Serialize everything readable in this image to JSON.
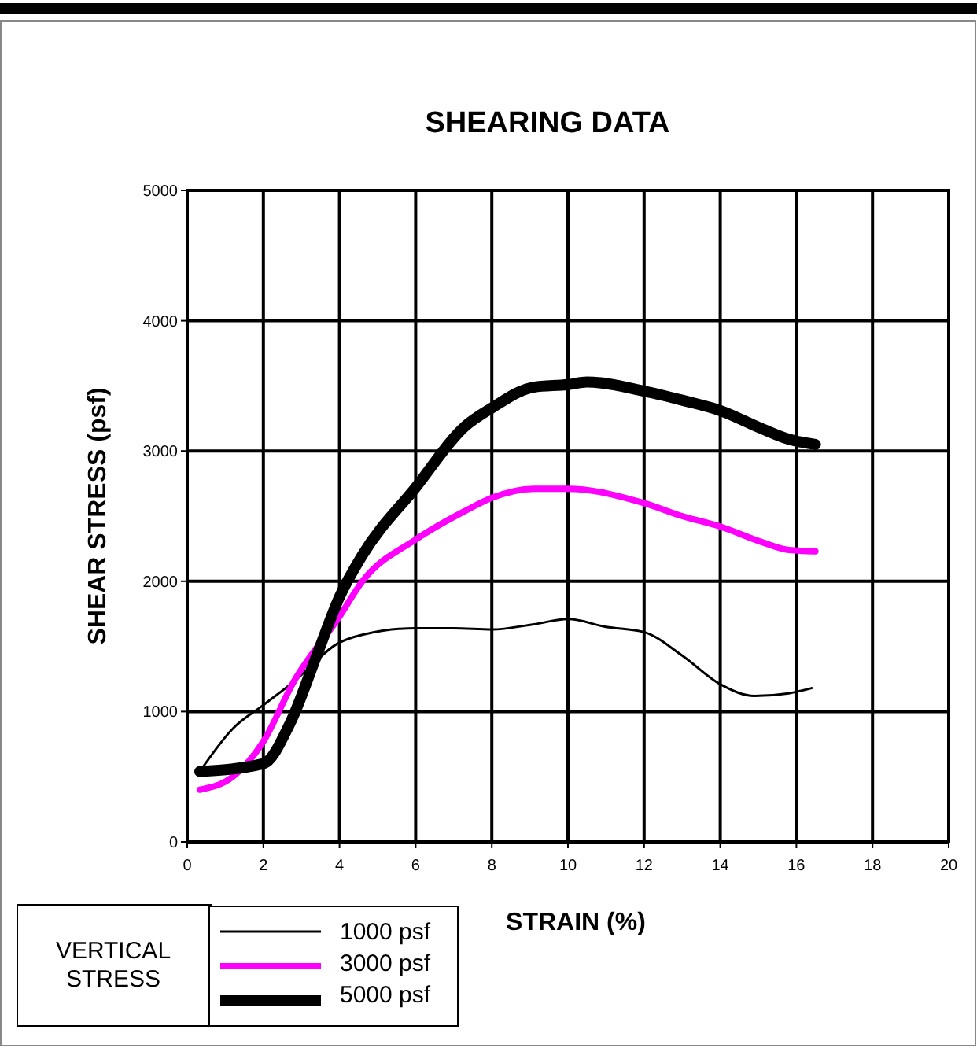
{
  "chart_data": {
    "type": "line",
    "title": "SHEARING DATA",
    "xlabel": "STRAIN (%)",
    "ylabel": "SHEAR STRESS (psf)",
    "legend_title": "VERTICAL STRESS",
    "xlim": [
      0,
      20
    ],
    "xticks": [
      0,
      2,
      4,
      6,
      8,
      10,
      12,
      14,
      16,
      18,
      20
    ],
    "ylim": [
      0,
      5000
    ],
    "yticks": [
      0,
      1000,
      2000,
      3000,
      4000,
      5000
    ],
    "grid": true,
    "legend": "bottom left",
    "marker": "none",
    "line_style": "solid",
    "series": [
      {
        "name": "1000 psf",
        "color": "#000000",
        "x": [
          0.33,
          1.2,
          2,
          2.8,
          4,
          4.6,
          6,
          7,
          8,
          9.1,
          10,
          11,
          12,
          13,
          14,
          14.9,
          15.8,
          16.4
        ],
        "values": [
          540,
          870,
          1050,
          1230,
          1530,
          1590,
          1640,
          1640,
          1630,
          1670,
          1710,
          1650,
          1610,
          1430,
          1210,
          1120,
          1140,
          1180
        ]
      },
      {
        "name": "3000 psf",
        "color": "#ff00ff",
        "x": [
          0.33,
          1.2,
          2,
          2.8,
          4,
          4.6,
          6,
          7.3,
          8,
          9.1,
          10,
          12,
          13,
          14,
          15.1,
          15.8,
          16.5
        ],
        "values": [
          400,
          500,
          770,
          1230,
          1730,
          2000,
          2320,
          2540,
          2640,
          2710,
          2710,
          2600,
          2500,
          2420,
          2300,
          2240,
          2230
        ]
      },
      {
        "name": "5000 psf",
        "color": "#000000",
        "x": [
          0.33,
          2,
          2.7,
          3.4,
          4,
          4.6,
          6,
          7.3,
          8,
          9.1,
          10,
          10.5,
          12,
          13,
          14,
          15.1,
          15.8,
          16.5
        ],
        "values": [
          540,
          600,
          910,
          1430,
          1880,
          2200,
          2720,
          3190,
          3330,
          3490,
          3510,
          3530,
          3460,
          3390,
          3310,
          3170,
          3090,
          3050
        ]
      }
    ]
  }
}
